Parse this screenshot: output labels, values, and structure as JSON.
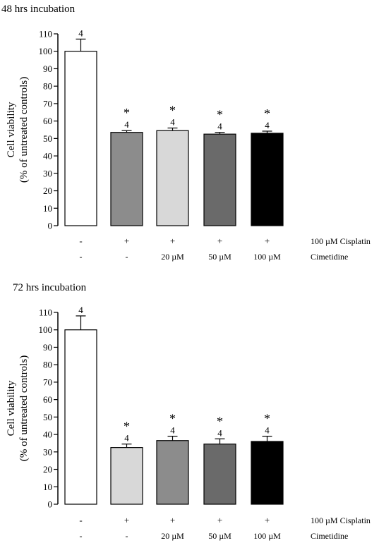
{
  "chart_data": [
    {
      "type": "bar",
      "title": "48 hrs incubation",
      "ylabel_line1": "Cell viability",
      "ylabel_line2": "(% of untreated controls)",
      "ylim": [
        0,
        110
      ],
      "yticks": [
        0,
        10,
        20,
        30,
        40,
        50,
        60,
        70,
        80,
        90,
        100,
        110
      ],
      "grid": false,
      "values": [
        100,
        53.5,
        54.5,
        52.5,
        53
      ],
      "errors": [
        7,
        1,
        1.5,
        1,
        1.2
      ],
      "n_labels": [
        "4",
        "4",
        "4",
        "4",
        "4"
      ],
      "significance": [
        "",
        "*",
        "*",
        "*",
        "*"
      ],
      "bar_fills": [
        "#ffffff",
        "#8c8c8c",
        "#d8d8d8",
        "#6a6a6a",
        "#000000"
      ],
      "conditions": [
        {
          "label": "100 µM Cisplatin",
          "values": [
            "-",
            "+",
            "+",
            "+",
            "+"
          ]
        },
        {
          "label": "Cimetidine",
          "values": [
            "-",
            "-",
            "20 µM",
            "50 µM",
            "100 µM"
          ]
        }
      ]
    },
    {
      "type": "bar",
      "title": "72 hrs incubation",
      "ylabel_line1": "Cell viability",
      "ylabel_line2": "(% of untreated controls)",
      "ylim": [
        0,
        110
      ],
      "yticks": [
        0,
        10,
        20,
        30,
        40,
        50,
        60,
        70,
        80,
        90,
        100,
        110
      ],
      "grid": false,
      "values": [
        100,
        32.5,
        36.5,
        34.5,
        36
      ],
      "errors": [
        8,
        2,
        2.5,
        3,
        3
      ],
      "n_labels": [
        "4",
        "4",
        "4",
        "4",
        "4"
      ],
      "significance": [
        "",
        "*",
        "*",
        "*",
        "*"
      ],
      "bar_fills": [
        "#ffffff",
        "#d8d8d8",
        "#8c8c8c",
        "#6a6a6a",
        "#000000"
      ],
      "conditions": [
        {
          "label": "100 µM Cisplatin",
          "values": [
            "-",
            "+",
            "+",
            "+",
            "+"
          ]
        },
        {
          "label": "Cimetidine",
          "values": [
            "-",
            "-",
            "20 µM",
            "50 µM",
            "100 µM"
          ]
        }
      ]
    }
  ]
}
